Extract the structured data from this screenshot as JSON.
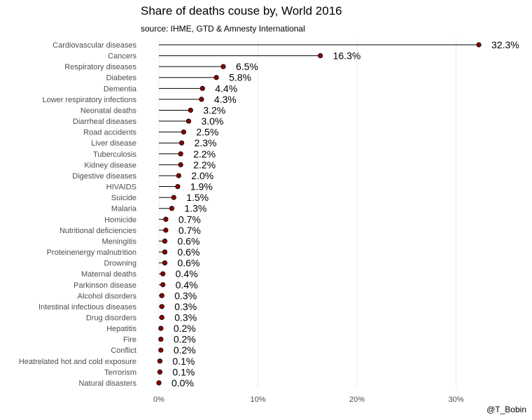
{
  "chart_data": {
    "type": "lollipop",
    "title": "Share of deaths couse by, World 2016",
    "subtitle": "source: IHME, GTD & Amnesty International",
    "caption": "@T_Bobin",
    "xlabel": "",
    "ylabel": "",
    "xlim": [
      -0.4,
      35.5
    ],
    "x_ticks": [
      0,
      10,
      20,
      30
    ],
    "x_tick_labels": [
      "0%",
      "10%",
      "20%",
      "30%"
    ],
    "grid": "vertical",
    "legend": "none",
    "colors": {
      "point": "#8B0000",
      "line": "#000000",
      "grid": "#EBEBEB",
      "axis_text": "#4D4D4D"
    },
    "categories": [
      "Cardiovascular diseases",
      "Cancers",
      "Respiratory diseases",
      "Diabetes",
      "Dementia",
      "Lower respiratory infections",
      "Neonatal deaths",
      "Diarrheal diseases",
      "Road accidents",
      "Liver disease",
      "Tuberculosis",
      "Kidney disease",
      "Digestive diseases",
      "HIVAIDS",
      "Suicide",
      "Malaria",
      "Homicide",
      "Nutritional deficiencies",
      "Meningitis",
      "Proteinenergy malnutrition",
      "Drowning",
      "Maternal deaths",
      "Parkinson disease",
      "Alcohol disorders",
      "Intestinal infectious diseases",
      "Drug disorders",
      "Hepatitis",
      "Fire",
      "Conflict",
      "Heatrelated hot and cold exposure",
      "Terrorism",
      "Natural disasters"
    ],
    "values": [
      32.3,
      16.3,
      6.5,
      5.8,
      4.4,
      4.3,
      3.2,
      3.0,
      2.5,
      2.3,
      2.2,
      2.2,
      2.0,
      1.9,
      1.5,
      1.3,
      0.7,
      0.7,
      0.6,
      0.6,
      0.6,
      0.4,
      0.4,
      0.3,
      0.3,
      0.3,
      0.2,
      0.2,
      0.2,
      0.1,
      0.1,
      0.0
    ],
    "value_labels": [
      "32.3%",
      "16.3%",
      "6.5%",
      "5.8%",
      "4.4%",
      "4.3%",
      "3.2%",
      "3.0%",
      "2.5%",
      "2.3%",
      "2.2%",
      "2.2%",
      "2.0%",
      "1.9%",
      "1.5%",
      "1.3%",
      "0.7%",
      "0.7%",
      "0.6%",
      "0.6%",
      "0.6%",
      "0.4%",
      "0.4%",
      "0.3%",
      "0.3%",
      "0.3%",
      "0.2%",
      "0.2%",
      "0.2%",
      "0.1%",
      "0.1%",
      "0.0%"
    ]
  }
}
